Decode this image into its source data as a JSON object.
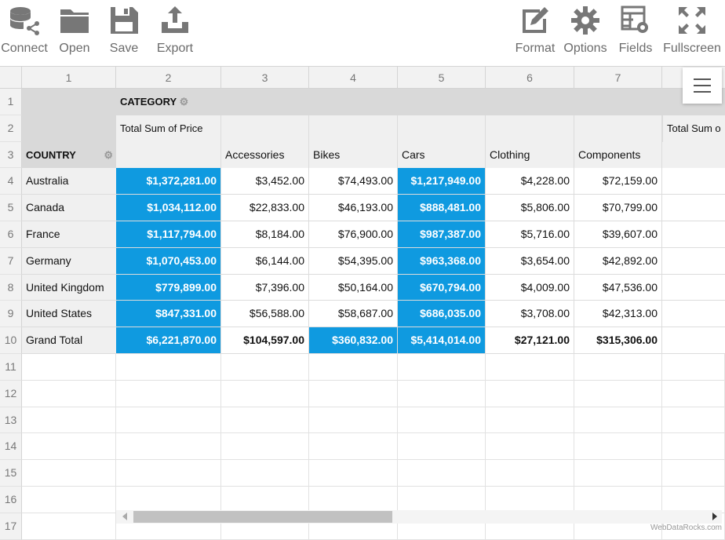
{
  "toolbar": {
    "left": [
      {
        "id": "connect",
        "label": "Connect",
        "icon": "database-share-icon"
      },
      {
        "id": "open",
        "label": "Open",
        "icon": "folder-icon"
      },
      {
        "id": "save",
        "label": "Save",
        "icon": "floppy-disk-icon"
      },
      {
        "id": "export",
        "label": "Export",
        "icon": "export-tray-icon"
      }
    ],
    "right": [
      {
        "id": "format",
        "label": "Format",
        "icon": "edit-format-icon"
      },
      {
        "id": "options",
        "label": "Options",
        "icon": "gear-icon"
      },
      {
        "id": "fields",
        "label": "Fields",
        "icon": "fields-settings-icon"
      },
      {
        "id": "fullscreen",
        "label": "Fullscreen",
        "icon": "fullscreen-icon"
      }
    ]
  },
  "grid": {
    "col_headers": [
      "1",
      "2",
      "3",
      "4",
      "5",
      "6",
      "7"
    ],
    "row_headers": [
      "1",
      "2",
      "3",
      "4",
      "5",
      "6",
      "7",
      "8",
      "9",
      "10",
      "11",
      "12",
      "13",
      "14",
      "15",
      "16",
      "17"
    ],
    "category_label": "CATEGORY",
    "country_label": "COUNTRY",
    "measure_label": "Total Sum of Price",
    "measure_label_truncated": "Total Sum o",
    "categories": [
      "Accessories",
      "Bikes",
      "Cars",
      "Clothing",
      "Components"
    ],
    "rows": [
      {
        "country": "Australia",
        "values": [
          "$1,372,281.00",
          "$3,452.00",
          "$74,493.00",
          "$1,217,949.00",
          "$4,228.00",
          "$72,159.00"
        ],
        "highlight": [
          true,
          false,
          false,
          true,
          false,
          false
        ]
      },
      {
        "country": "Canada",
        "values": [
          "$1,034,112.00",
          "$22,833.00",
          "$46,193.00",
          "$888,481.00",
          "$5,806.00",
          "$70,799.00"
        ],
        "highlight": [
          true,
          false,
          false,
          true,
          false,
          false
        ]
      },
      {
        "country": "France",
        "values": [
          "$1,117,794.00",
          "$8,184.00",
          "$76,900.00",
          "$987,387.00",
          "$5,716.00",
          "$39,607.00"
        ],
        "highlight": [
          true,
          false,
          false,
          true,
          false,
          false
        ]
      },
      {
        "country": "Germany",
        "values": [
          "$1,070,453.00",
          "$6,144.00",
          "$54,395.00",
          "$963,368.00",
          "$3,654.00",
          "$42,892.00"
        ],
        "highlight": [
          true,
          false,
          false,
          true,
          false,
          false
        ]
      },
      {
        "country": "United Kingdom",
        "values": [
          "$779,899.00",
          "$7,396.00",
          "$50,164.00",
          "$670,794.00",
          "$4,009.00",
          "$47,536.00"
        ],
        "highlight": [
          true,
          false,
          false,
          true,
          false,
          false
        ]
      },
      {
        "country": "United States",
        "values": [
          "$847,331.00",
          "$56,588.00",
          "$58,687.00",
          "$686,035.00",
          "$3,708.00",
          "$42,313.00"
        ],
        "highlight": [
          true,
          false,
          false,
          true,
          false,
          false
        ]
      }
    ],
    "grand_total": {
      "label": "Grand Total",
      "values": [
        "$6,221,870.00",
        "$104,597.00",
        "$360,832.00",
        "$5,414,014.00",
        "$27,121.00",
        "$315,306.00"
      ],
      "highlight": [
        true,
        false,
        true,
        true,
        false,
        false
      ]
    }
  },
  "colors": {
    "highlight": "#0f9ae0",
    "header_bg": "#f2f2f2",
    "pivot_header_bg": "#d9d9d9"
  },
  "footer": {
    "brand": "WebDataRocks.com"
  }
}
